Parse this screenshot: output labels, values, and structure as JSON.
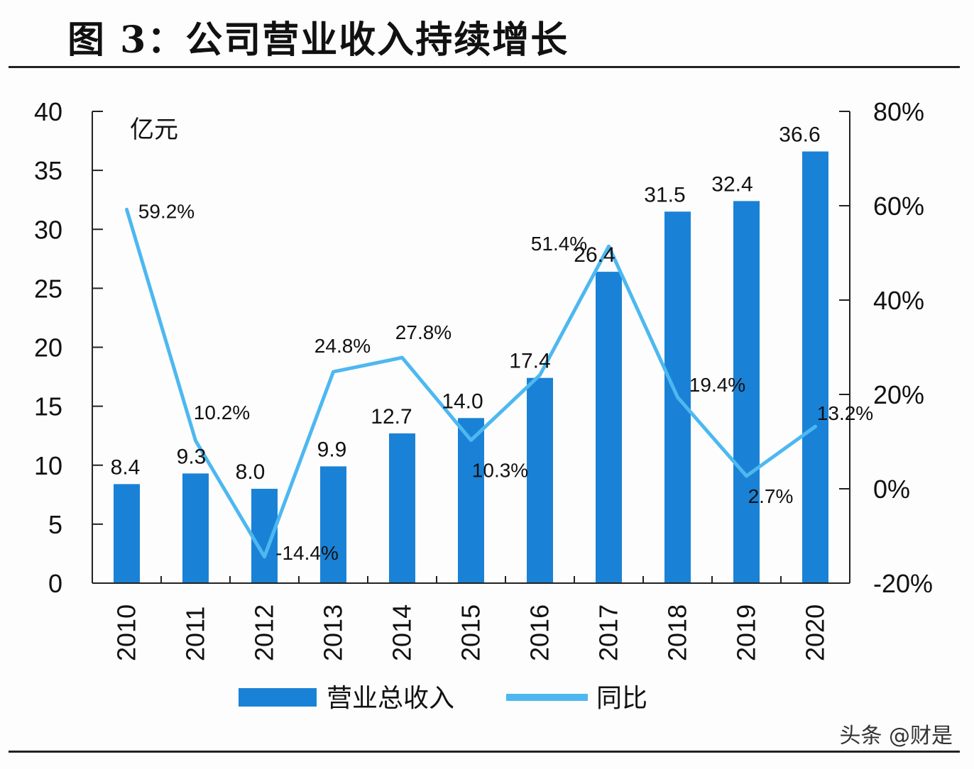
{
  "title": "图 3：公司营业收入持续增长",
  "watermark": "头条 @财是",
  "chart_data": {
    "type": "bar",
    "categories": [
      "2010",
      "2011",
      "2012",
      "2013",
      "2014",
      "2015",
      "2016",
      "2017",
      "2018",
      "2019",
      "2020"
    ],
    "series": [
      {
        "name": "营业总收入",
        "type": "bar",
        "axis": "left",
        "color": "#1a82d6",
        "values": [
          8.4,
          9.3,
          8.0,
          9.9,
          12.7,
          14.0,
          17.4,
          26.4,
          31.5,
          32.4,
          36.6
        ],
        "labels": [
          "8.4",
          "9.3",
          "8.0",
          "9.9",
          "12.7",
          "14.0",
          "17.4",
          "26.4",
          "31.5",
          "32.4",
          "36.6"
        ]
      },
      {
        "name": "同比",
        "type": "line",
        "axis": "right",
        "color": "#4db8f0",
        "values": [
          59.2,
          10.2,
          -14.4,
          24.8,
          27.8,
          10.3,
          24.1,
          51.4,
          19.4,
          2.7,
          13.2
        ],
        "labels": [
          "59.2%",
          "10.2%",
          "-14.4%",
          "24.8%",
          "27.8%",
          "10.3%",
          "",
          "51.4%",
          "19.4%",
          "2.7%",
          "13.2%"
        ]
      }
    ],
    "ylabel": "亿元",
    "ylim": [
      0,
      40
    ],
    "yticks": [
      0,
      5,
      10,
      15,
      20,
      25,
      30,
      35,
      40
    ],
    "y2lim": [
      -20,
      80
    ],
    "y2ticks": [
      -20,
      0,
      20,
      40,
      60,
      80
    ],
    "y2tick_labels": [
      "-20%",
      "0%",
      "20%",
      "40%",
      "60%",
      "80%"
    ],
    "legend": [
      {
        "label": "营业总收入",
        "color": "#1a82d6"
      },
      {
        "label": "同比",
        "color": "#4db8f0"
      }
    ],
    "legend_position": "bottom",
    "grid": false
  }
}
